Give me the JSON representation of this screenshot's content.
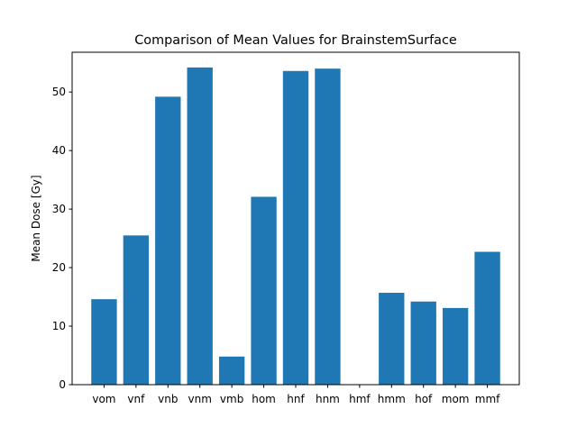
{
  "chart_data": {
    "type": "bar",
    "title": "Comparison of Mean Values for BrainstemSurface",
    "xlabel": "",
    "ylabel": "Mean Dose [Gy]",
    "categories": [
      "vom",
      "vnf",
      "vnb",
      "vnm",
      "vmb",
      "hom",
      "hnf",
      "hnm",
      "hmf",
      "hmm",
      "hof",
      "mom",
      "mmf"
    ],
    "values": [
      14.6,
      25.5,
      49.2,
      54.2,
      4.8,
      32.1,
      53.6,
      54.0,
      0.0,
      15.7,
      14.2,
      13.1,
      22.7
    ],
    "ylim": [
      0,
      56.8
    ],
    "yticks": [
      0,
      10,
      20,
      30,
      40,
      50
    ],
    "grid": false,
    "legend": "none",
    "colors": {
      "bar": "#1f77b4",
      "axis": "#000000",
      "background": "#ffffff"
    }
  }
}
